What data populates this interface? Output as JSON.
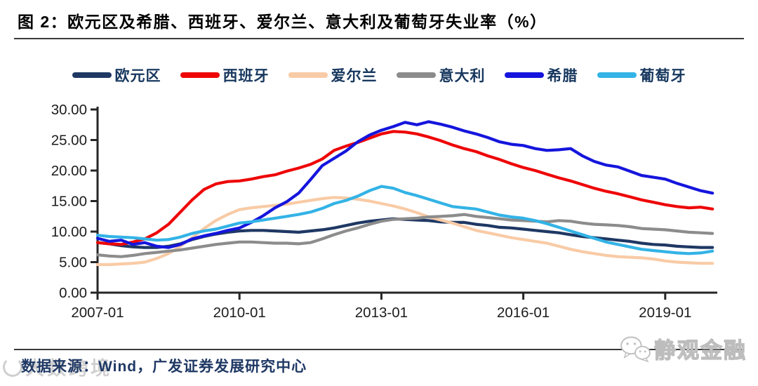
{
  "title": "图 2：欧元区及希腊、西班牙、爱尔兰、意大利及葡萄牙失业率（%）",
  "footer": {
    "source": "数据来源：Wind，广发证券发展研究中心"
  },
  "watermarks": {
    "bottom_left": "大数跨境",
    "bottom_right": "静观金融"
  },
  "colors": {
    "axis": "#262626",
    "rule": "#3a3a3a",
    "legend_text": "#17375e",
    "source_text": "#1f3864"
  },
  "chart_data": {
    "type": "line",
    "title": "欧元区及希腊、西班牙、爱尔兰、意大利及葡萄牙失业率（%）",
    "x_start": "2007-01",
    "x_end": "2020-01",
    "points_interval_months": 3,
    "x_tick_labels": [
      "2007-01",
      "2010-01",
      "2013-01",
      "2016-01",
      "2019-01"
    ],
    "y_tick_labels": [
      "0.00",
      "5.00",
      "10.00",
      "15.00",
      "20.00",
      "25.00",
      "30.00"
    ],
    "y_tick_values": [
      0,
      5,
      10,
      15,
      20,
      25,
      30
    ],
    "ylim": [
      0,
      30
    ],
    "grid": false,
    "legend_position": "top",
    "series": [
      {
        "key": "eurozone",
        "name": "欧元区",
        "color": "#1f3864",
        "values": [
          8.2,
          8.0,
          7.7,
          7.5,
          7.4,
          7.4,
          7.6,
          8.0,
          8.7,
          9.2,
          9.6,
          9.9,
          10.1,
          10.2,
          10.2,
          10.1,
          10.0,
          9.9,
          10.1,
          10.3,
          10.6,
          11.0,
          11.4,
          11.7,
          11.9,
          12.1,
          12.0,
          11.9,
          11.8,
          11.6,
          11.5,
          11.5,
          11.2,
          11.0,
          10.7,
          10.6,
          10.4,
          10.2,
          10.0,
          9.8,
          9.5,
          9.2,
          9.0,
          8.8,
          8.6,
          8.4,
          8.1,
          7.9,
          7.8,
          7.6,
          7.5,
          7.4,
          7.4
        ]
      },
      {
        "key": "spain",
        "name": "西班牙",
        "color": "#ee0606",
        "values": [
          8.2,
          8.0,
          7.9,
          8.3,
          8.8,
          9.8,
          11.2,
          13.2,
          15.2,
          16.9,
          17.8,
          18.2,
          18.3,
          18.6,
          19.0,
          19.3,
          19.9,
          20.4,
          21.0,
          21.9,
          23.3,
          24.0,
          24.6,
          25.3,
          26.0,
          26.4,
          26.3,
          26.0,
          25.5,
          24.9,
          24.2,
          23.6,
          23.1,
          22.4,
          21.8,
          21.1,
          20.5,
          20.0,
          19.4,
          18.8,
          18.3,
          17.7,
          17.1,
          16.6,
          16.2,
          15.7,
          15.2,
          14.8,
          14.4,
          14.1,
          13.9,
          14.0,
          13.7
        ]
      },
      {
        "key": "ireland",
        "name": "爱尔兰",
        "color": "#f8cba6",
        "values": [
          4.6,
          4.6,
          4.7,
          4.8,
          5.0,
          5.6,
          6.4,
          7.6,
          9.0,
          10.5,
          11.8,
          12.8,
          13.6,
          13.9,
          14.1,
          14.3,
          14.5,
          14.8,
          15.1,
          15.4,
          15.6,
          15.5,
          15.3,
          15.0,
          14.6,
          14.2,
          13.7,
          13.1,
          12.4,
          11.9,
          11.4,
          10.8,
          10.2,
          9.8,
          9.4,
          9.0,
          8.7,
          8.4,
          8.1,
          7.6,
          7.1,
          6.7,
          6.4,
          6.1,
          5.9,
          5.8,
          5.7,
          5.5,
          5.2,
          5.0,
          4.9,
          4.8,
          4.8
        ]
      },
      {
        "key": "italy",
        "name": "意大利",
        "color": "#8c8c8c",
        "values": [
          6.2,
          6.0,
          5.9,
          6.1,
          6.4,
          6.6,
          6.8,
          7.0,
          7.3,
          7.6,
          7.9,
          8.1,
          8.3,
          8.3,
          8.2,
          8.1,
          8.1,
          8.0,
          8.2,
          8.8,
          9.5,
          10.1,
          10.6,
          11.2,
          11.7,
          12.0,
          12.1,
          12.2,
          12.4,
          12.5,
          12.6,
          12.8,
          12.5,
          12.3,
          12.1,
          11.9,
          11.8,
          11.7,
          11.6,
          11.8,
          11.7,
          11.4,
          11.2,
          11.1,
          11.0,
          10.8,
          10.5,
          10.4,
          10.3,
          10.1,
          9.9,
          9.8,
          9.7
        ]
      },
      {
        "key": "greece",
        "name": "希腊",
        "color": "#1515dd",
        "values": [
          8.9,
          8.4,
          8.6,
          7.9,
          8.2,
          7.6,
          7.4,
          7.9,
          8.8,
          9.3,
          9.7,
          10.2,
          10.6,
          11.5,
          12.6,
          13.9,
          14.9,
          16.3,
          18.5,
          20.8,
          22.0,
          23.2,
          24.7,
          25.8,
          26.6,
          27.2,
          27.9,
          27.5,
          28.0,
          27.6,
          27.1,
          26.5,
          26.0,
          25.4,
          24.7,
          24.3,
          24.1,
          23.6,
          23.3,
          23.4,
          23.6,
          22.4,
          21.5,
          20.9,
          20.6,
          19.9,
          19.2,
          18.9,
          18.6,
          17.9,
          17.3,
          16.7,
          16.3
        ]
      },
      {
        "key": "portugal",
        "name": "葡萄牙",
        "color": "#33b3e6",
        "values": [
          9.4,
          9.2,
          9.1,
          9.0,
          8.8,
          8.6,
          8.7,
          9.1,
          9.7,
          10.1,
          10.4,
          10.9,
          11.4,
          11.6,
          11.9,
          12.2,
          12.5,
          12.8,
          13.2,
          13.8,
          14.6,
          15.1,
          15.8,
          16.7,
          17.4,
          17.1,
          16.4,
          15.9,
          15.3,
          14.7,
          14.1,
          13.9,
          13.7,
          13.2,
          12.7,
          12.4,
          12.2,
          11.8,
          11.3,
          10.7,
          10.1,
          9.5,
          8.9,
          8.3,
          7.9,
          7.5,
          7.1,
          6.9,
          6.7,
          6.5,
          6.4,
          6.5,
          6.8
        ]
      }
    ]
  }
}
